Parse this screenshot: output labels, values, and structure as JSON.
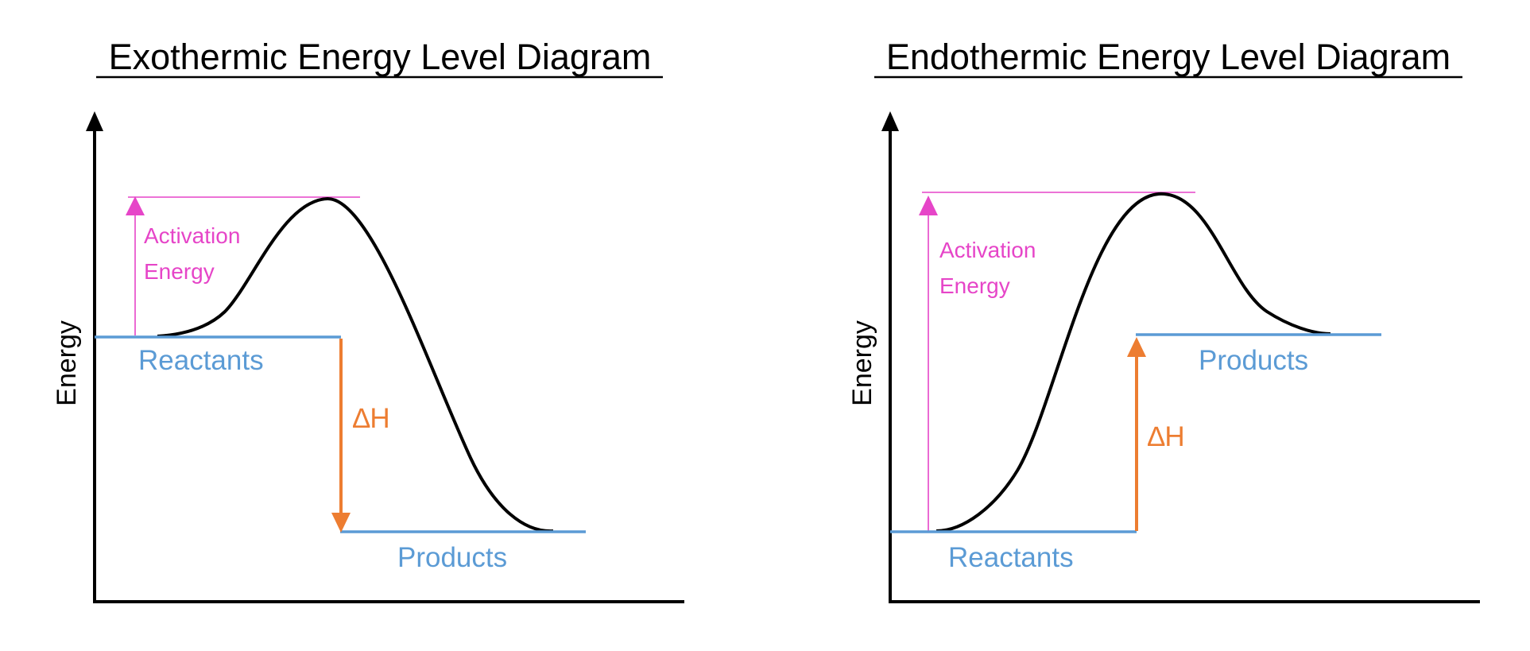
{
  "colors": {
    "axis": "#000000",
    "curve": "#000000",
    "level": "#5b9bd5",
    "activation": "#e645c8",
    "enthalpy": "#ed7d31"
  },
  "diagrams": [
    {
      "title": "Exothermic Energy Level Diagram",
      "y_axis_label": "Energy",
      "reactants_label": "Reactants",
      "products_label": "Products",
      "activation_label_line1": "Activation",
      "activation_label_line2": "Energy",
      "enthalpy_label": "∆H",
      "enthalpy_direction": "down"
    },
    {
      "title": "Endothermic Energy Level Diagram",
      "y_axis_label": "Energy",
      "reactants_label": "Reactants",
      "products_label": "Products",
      "activation_label_line1": "Activation",
      "activation_label_line2": "Energy",
      "enthalpy_label": "∆H",
      "enthalpy_direction": "up"
    }
  ]
}
